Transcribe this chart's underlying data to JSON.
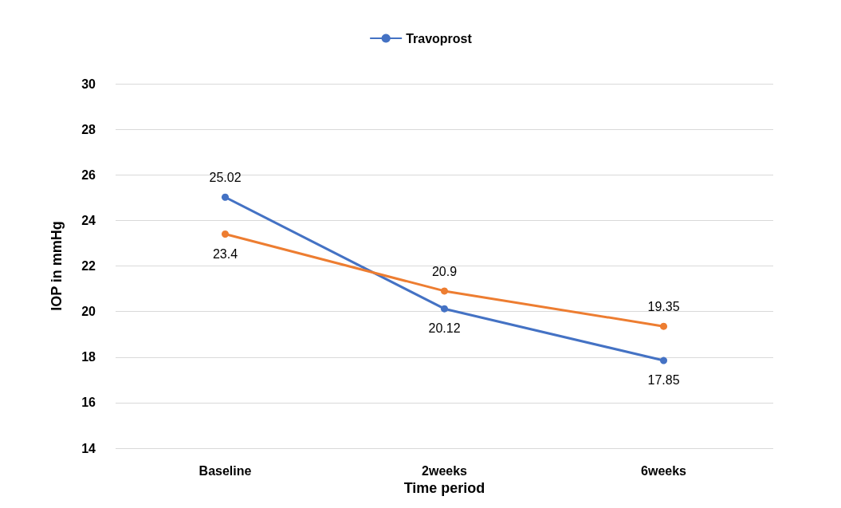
{
  "chart_data": {
    "type": "line",
    "xlabel": "Time period",
    "ylabel": "IOP in mmHg",
    "categories": [
      "Baseline",
      "2weeks",
      "6weeks"
    ],
    "series": [
      {
        "name": "Travoprost",
        "color": "#4472c4",
        "values": [
          25.02,
          20.12,
          17.85
        ]
      },
      {
        "color": "#ed7d31",
        "values": [
          23.4,
          20.9,
          19.35
        ]
      }
    ],
    "ylim": [
      14,
      30
    ],
    "yticks": [
      14,
      16,
      18,
      20,
      22,
      24,
      26,
      28,
      30
    ],
    "grid": "y",
    "legend": "top",
    "marker": "circle",
    "data_labels": true
  }
}
